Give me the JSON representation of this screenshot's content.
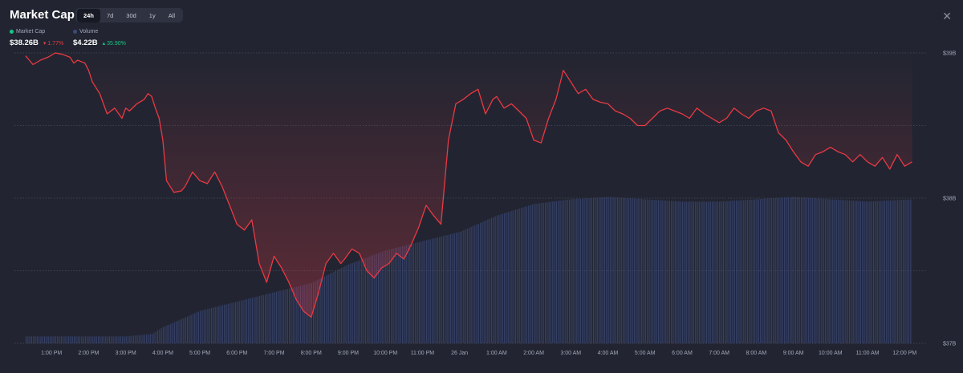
{
  "header": {
    "title": "Market Cap",
    "tabs": [
      {
        "label": "24h",
        "active": true
      },
      {
        "label": "7d",
        "active": false
      },
      {
        "label": "30d",
        "active": false
      },
      {
        "label": "1y",
        "active": false
      },
      {
        "label": "All",
        "active": false
      }
    ],
    "close_icon": "close-icon"
  },
  "legend": {
    "market_cap": {
      "label": "Market Cap",
      "value": "$38.26B",
      "change": "1.77%",
      "direction": "down"
    },
    "volume": {
      "label": "Volume",
      "value": "$4.22B",
      "change": "35.90%",
      "direction": "up"
    }
  },
  "colors": {
    "background": "#222531",
    "line_down": "#ea3943",
    "line_up": "#16c784",
    "volume": "#3c4a7a",
    "grid": "#6b7080"
  },
  "chart_data": {
    "type": "line",
    "y_ticks": [
      "$39B",
      "$38B",
      "$37B"
    ],
    "ylim": [
      37.0,
      39.0
    ],
    "x_ticks": [
      "1:00 PM",
      "2:00 PM",
      "3:00 PM",
      "4:00 PM",
      "5:00 PM",
      "6:00 PM",
      "7:00 PM",
      "8:00 PM",
      "9:00 PM",
      "10:00 PM",
      "11:00 PM",
      "26 Jan",
      "1:00 AM",
      "2:00 AM",
      "3:00 AM",
      "4:00 AM",
      "5:00 AM",
      "6:00 AM",
      "7:00 AM",
      "8:00 AM",
      "9:00 AM",
      "10:00 AM",
      "11:00 AM",
      "12:00 PM"
    ],
    "x_hours": [
      1,
      2,
      3,
      4,
      5,
      6,
      7,
      8,
      9,
      10,
      11,
      12,
      13,
      14,
      15,
      16,
      17,
      18,
      19,
      20,
      21,
      22,
      23,
      24
    ],
    "grid": true,
    "series": [
      {
        "name": "Market Cap",
        "unit": "$B",
        "x_hours": [
          0.3,
          0.5,
          0.7,
          0.9,
          1.1,
          1.3,
          1.5,
          1.6,
          1.7,
          1.9,
          2.0,
          2.1,
          2.3,
          2.5,
          2.7,
          2.9,
          3.0,
          3.1,
          3.3,
          3.5,
          3.6,
          3.7,
          3.8,
          3.9,
          4.0,
          4.1,
          4.3,
          4.5,
          4.6,
          4.8,
          5.0,
          5.2,
          5.4,
          5.6,
          5.8,
          6.0,
          6.2,
          6.4,
          6.6,
          6.8,
          7.0,
          7.2,
          7.4,
          7.6,
          7.8,
          8.0,
          8.2,
          8.4,
          8.6,
          8.8,
          8.9,
          9.1,
          9.3,
          9.5,
          9.7,
          9.9,
          10.1,
          10.3,
          10.5,
          10.7,
          10.9,
          11.1,
          11.3,
          11.5,
          11.7,
          11.9,
          12.1,
          12.3,
          12.5,
          12.7,
          12.9,
          13.0,
          13.2,
          13.4,
          13.6,
          13.8,
          14.0,
          14.2,
          14.4,
          14.6,
          14.8,
          15.0,
          15.2,
          15.4,
          15.6,
          15.8,
          16.0,
          16.2,
          16.4,
          16.6,
          16.8,
          17.0,
          17.2,
          17.4,
          17.6,
          17.8,
          18.0,
          18.2,
          18.4,
          18.6,
          18.8,
          19.0,
          19.2,
          19.4,
          19.6,
          19.8,
          20.0,
          20.2,
          20.4,
          20.6,
          20.8,
          21.0,
          21.2,
          21.4,
          21.6,
          21.8,
          22.0,
          22.2,
          22.4,
          22.6,
          22.8,
          23.0,
          23.2,
          23.4,
          23.6,
          23.8,
          24.0,
          24.2
        ],
        "values": [
          38.98,
          38.92,
          38.95,
          38.97,
          39.0,
          38.99,
          38.97,
          38.93,
          38.95,
          38.93,
          38.88,
          38.8,
          38.72,
          38.58,
          38.62,
          38.55,
          38.62,
          38.6,
          38.65,
          38.68,
          38.72,
          38.7,
          38.62,
          38.55,
          38.4,
          38.12,
          38.04,
          38.05,
          38.08,
          38.18,
          38.12,
          38.1,
          38.18,
          38.08,
          37.95,
          37.82,
          37.78,
          37.85,
          37.55,
          37.42,
          37.6,
          37.52,
          37.42,
          37.3,
          37.22,
          37.18,
          37.35,
          37.55,
          37.62,
          37.55,
          37.58,
          37.65,
          37.62,
          37.5,
          37.45,
          37.52,
          37.55,
          37.62,
          37.58,
          37.68,
          37.8,
          37.95,
          37.88,
          37.82,
          38.4,
          38.65,
          38.68,
          38.72,
          38.75,
          38.58,
          38.68,
          38.7,
          38.62,
          38.65,
          38.6,
          38.55,
          38.4,
          38.38,
          38.55,
          38.68,
          38.88,
          38.8,
          38.72,
          38.75,
          38.68,
          38.66,
          38.65,
          38.6,
          38.58,
          38.55,
          38.5,
          38.5,
          38.55,
          38.6,
          38.62,
          38.6,
          38.58,
          38.55,
          38.62,
          38.58,
          38.55,
          38.52,
          38.55,
          38.62,
          38.58,
          38.55,
          38.6,
          38.62,
          38.6,
          38.45,
          38.4,
          38.32,
          38.25,
          38.22,
          38.3,
          38.32,
          38.35,
          38.32,
          38.3,
          38.25,
          38.3,
          38.25,
          38.22,
          38.28,
          38.2,
          38.3,
          38.22,
          38.25
        ]
      },
      {
        "name": "Volume",
        "unit": "relative",
        "x_hours": [
          0.3,
          1,
          2,
          3,
          3.7,
          4,
          5,
          6,
          7,
          8,
          9,
          10,
          11,
          12,
          13,
          14,
          15,
          16,
          17,
          18,
          19,
          20,
          21,
          22,
          23,
          24.2
        ],
        "values": [
          0.03,
          0.03,
          0.03,
          0.03,
          0.04,
          0.07,
          0.14,
          0.18,
          0.22,
          0.26,
          0.34,
          0.4,
          0.44,
          0.48,
          0.55,
          0.6,
          0.62,
          0.63,
          0.62,
          0.61,
          0.61,
          0.62,
          0.63,
          0.62,
          0.61,
          0.62
        ]
      }
    ],
    "extent_hours": [
      0,
      24.6
    ]
  }
}
